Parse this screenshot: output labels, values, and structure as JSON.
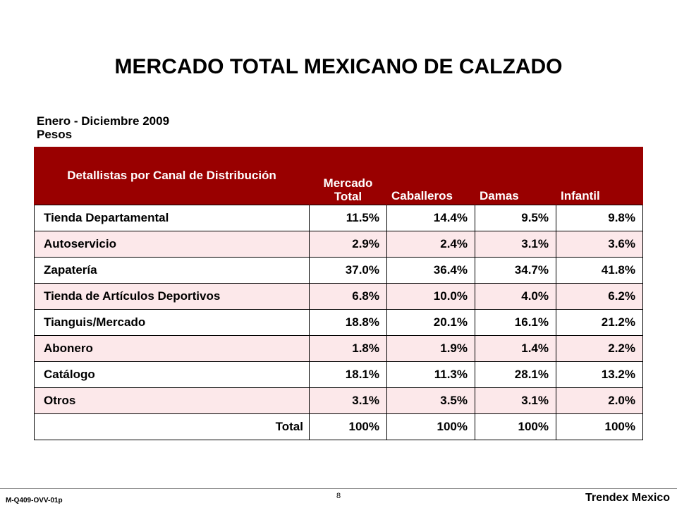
{
  "title": "MERCADO TOTAL MEXICANO DE CALZADO",
  "subtitle_line1": "Enero - Diciembre 2009",
  "subtitle_line2": "Pesos",
  "table": {
    "headers": [
      "Detallistas por Canal de Distribución",
      "Mercado Total",
      "Caballeros",
      "Damas",
      "Infantil"
    ],
    "rows": [
      {
        "label": "Tienda Departamental",
        "values": [
          "11.5%",
          "14.4%",
          "9.5%",
          "9.8%"
        ]
      },
      {
        "label": "Autoservicio",
        "values": [
          "2.9%",
          "2.4%",
          "3.1%",
          "3.6%"
        ]
      },
      {
        "label": "Zapatería",
        "values": [
          "37.0%",
          "36.4%",
          "34.7%",
          "41.8%"
        ]
      },
      {
        "label": "Tienda de Artículos Deportivos",
        "values": [
          "6.8%",
          "10.0%",
          "4.0%",
          "6.2%"
        ]
      },
      {
        "label": "Tianguis/Mercado",
        "values": [
          "18.8%",
          "20.1%",
          "16.1%",
          "21.2%"
        ]
      },
      {
        "label": "Abonero",
        "values": [
          "1.8%",
          "1.9%",
          "1.4%",
          "2.2%"
        ]
      },
      {
        "label": "Catálogo",
        "values": [
          "18.1%",
          "11.3%",
          "28.1%",
          "13.2%"
        ]
      },
      {
        "label": "Otros",
        "values": [
          "3.1%",
          "3.5%",
          "3.1%",
          "2.0%"
        ]
      }
    ],
    "total": {
      "label": "Total",
      "values": [
        "100%",
        "100%",
        "100%",
        "100%"
      ]
    }
  },
  "footer": {
    "code": "M-Q409-OVV-01p",
    "page": "8",
    "brand": "Trendex Mexico"
  },
  "colors": {
    "header_bg": "#990000",
    "row_tint": "#fce8ea"
  }
}
